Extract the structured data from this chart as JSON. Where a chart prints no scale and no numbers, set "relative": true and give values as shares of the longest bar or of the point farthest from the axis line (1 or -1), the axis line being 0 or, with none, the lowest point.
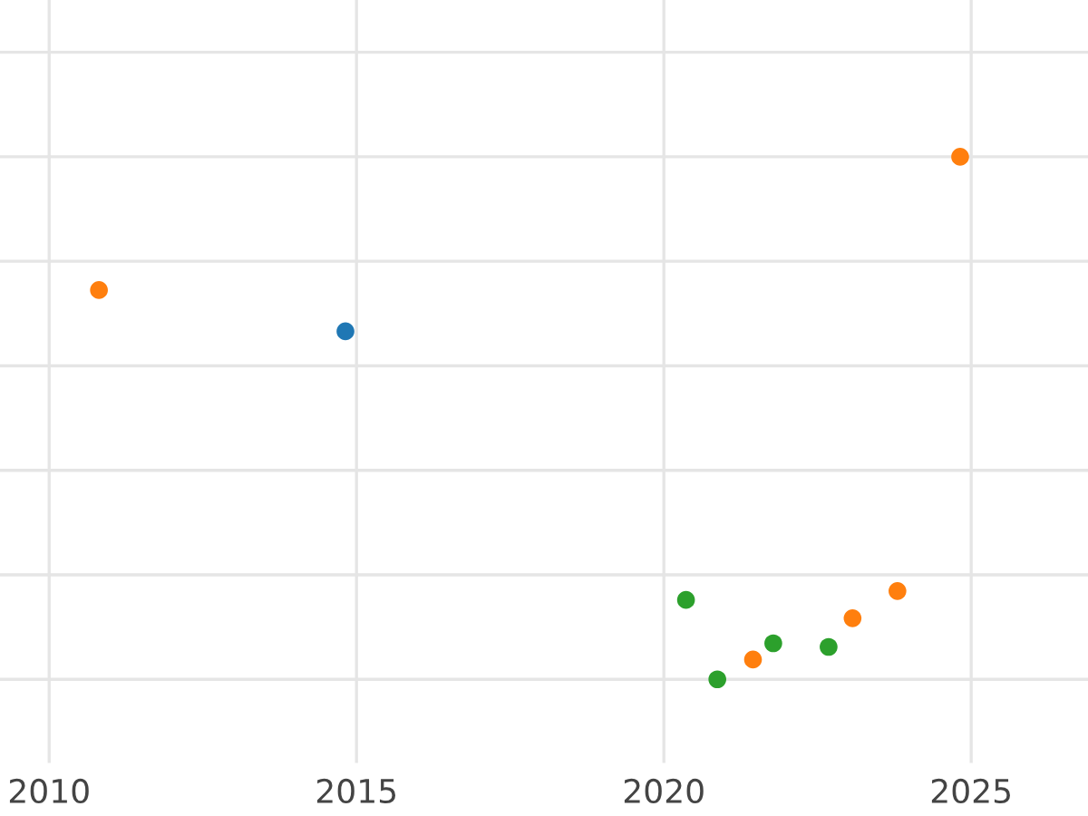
{
  "chart_data": {
    "type": "scatter",
    "relative": true,
    "xlim": [
      2009.2,
      2026.9
    ],
    "xticks": [
      2010,
      2015,
      2020,
      2025
    ],
    "grid": true,
    "legend": false,
    "marker": "circle",
    "series": [
      {
        "color": "#1f77b4",
        "x": [
          2014.82
        ],
        "values": [
          0.666
        ]
      },
      {
        "color": "#ff7f0e",
        "x": [
          2010.81,
          2021.45,
          2023.07,
          2023.8,
          2024.82
        ],
        "values": [
          0.745,
          0.038,
          0.117,
          0.169,
          1
        ]
      },
      {
        "color": "#2ca02c",
        "x": [
          2020.36,
          2020.87,
          2021.78,
          2022.68
        ],
        "values": [
          0.152,
          0,
          0.069,
          0.062
        ]
      }
    ]
  }
}
